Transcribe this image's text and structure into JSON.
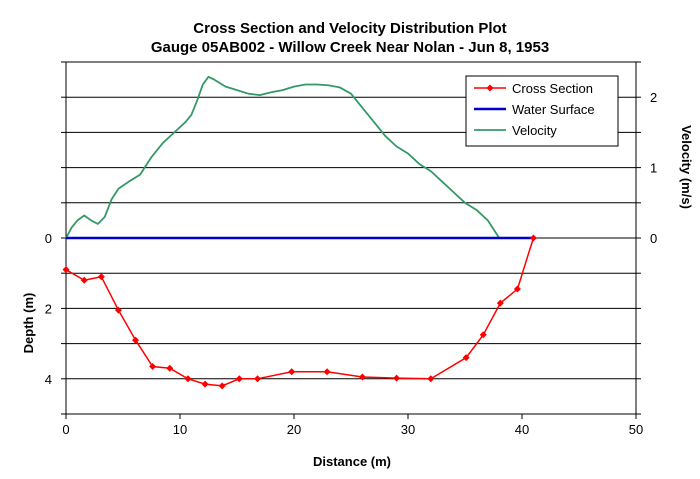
{
  "chart_data": {
    "type": "line",
    "title": "Cross Section and Velocity Distribution Plot",
    "subtitle": "Gauge 05AB002 - Willow Creek Near Nolan - Jun 8, 1953",
    "xlabel": "Distance (m)",
    "ylabel_left": "Depth (m)",
    "ylabel_right": "Velocity (m/s)",
    "xlim": [
      0,
      50
    ],
    "x_ticks": [
      0,
      10,
      20,
      30,
      40,
      50
    ],
    "ylim_depth": [
      5,
      -5
    ],
    "y_ticks_left": [
      0,
      2,
      4
    ],
    "ylim_velocity": [
      -2.5,
      2.5
    ],
    "y_ticks_right": [
      0,
      1,
      2
    ],
    "grid": true,
    "legend_position": "top-right",
    "colors": {
      "cross_section": "#ff0000",
      "water_surface": "#0000cc",
      "velocity": "#339966"
    },
    "series": [
      {
        "name": "Cross Section",
        "axis": "left",
        "x": [
          0,
          1.6,
          3.1,
          4.6,
          6.1,
          7.6,
          9.1,
          10.7,
          12.2,
          13.7,
          15.2,
          16.8,
          19.8,
          22.9,
          26.0,
          29.0,
          32.0,
          35.1,
          36.6,
          38.1,
          39.6,
          41.0
        ],
        "y": [
          0.9,
          1.2,
          1.1,
          2.05,
          2.9,
          3.65,
          3.7,
          4.0,
          4.15,
          4.2,
          4.0,
          4.0,
          3.8,
          3.8,
          3.95,
          3.98,
          4.0,
          3.4,
          2.75,
          1.85,
          1.45,
          0.0
        ]
      },
      {
        "name": "Water Surface",
        "axis": "left",
        "x": [
          0,
          41.0
        ],
        "y": [
          0,
          0
        ]
      },
      {
        "name": "Velocity",
        "axis": "right",
        "x": [
          0,
          0.5,
          1.0,
          1.6,
          2.2,
          2.8,
          3.4,
          4.0,
          4.6,
          5.5,
          6.5,
          7.5,
          8.5,
          9.5,
          10.5,
          11.0,
          11.5,
          12.0,
          12.5,
          13.0,
          14.0,
          15.0,
          16.0,
          17.0,
          18.0,
          19.0,
          20.0,
          21.0,
          22.0,
          23.0,
          24.0,
          25.0,
          26.0,
          27.0,
          28.0,
          29.0,
          30.0,
          31.0,
          32.0,
          33.0,
          34.0,
          35.0,
          36.0,
          37.0,
          38.0,
          39.0
        ],
        "y": [
          0.0,
          0.15,
          0.25,
          0.32,
          0.25,
          0.2,
          0.3,
          0.55,
          0.7,
          0.8,
          0.9,
          1.15,
          1.35,
          1.5,
          1.65,
          1.75,
          1.95,
          2.18,
          2.29,
          2.25,
          2.15,
          2.1,
          2.05,
          2.03,
          2.07,
          2.1,
          2.15,
          2.18,
          2.18,
          2.17,
          2.14,
          2.05,
          1.85,
          1.65,
          1.45,
          1.3,
          1.2,
          1.05,
          0.95,
          0.8,
          0.65,
          0.5,
          0.4,
          0.25,
          0.0,
          0.0
        ]
      }
    ]
  }
}
